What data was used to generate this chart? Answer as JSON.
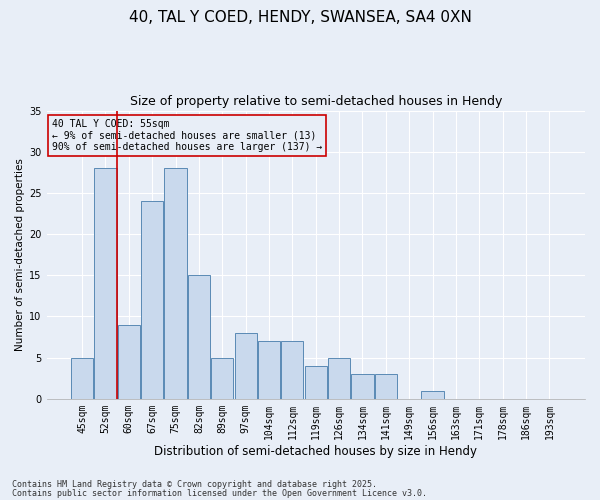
{
  "title1": "40, TAL Y COED, HENDY, SWANSEA, SA4 0XN",
  "title2": "Size of property relative to semi-detached houses in Hendy",
  "xlabel": "Distribution of semi-detached houses by size in Hendy",
  "ylabel": "Number of semi-detached properties",
  "categories": [
    "45sqm",
    "52sqm",
    "60sqm",
    "67sqm",
    "75sqm",
    "82sqm",
    "89sqm",
    "97sqm",
    "104sqm",
    "112sqm",
    "119sqm",
    "126sqm",
    "134sqm",
    "141sqm",
    "149sqm",
    "156sqm",
    "163sqm",
    "171sqm",
    "178sqm",
    "186sqm",
    "193sqm"
  ],
  "values": [
    5,
    28,
    9,
    24,
    28,
    15,
    5,
    8,
    7,
    7,
    4,
    5,
    3,
    3,
    0,
    1,
    0,
    0,
    0,
    0,
    0
  ],
  "bar_color": "#c9d9ed",
  "bar_edge_color": "#5a8ab5",
  "background_color": "#e8eef7",
  "grid_color": "#ffffff",
  "ylim": [
    0,
    35
  ],
  "yticks": [
    0,
    5,
    10,
    15,
    20,
    25,
    30,
    35
  ],
  "property_line_x": 1.5,
  "property_line_color": "#cc0000",
  "annotation_title": "40 TAL Y COED: 55sqm",
  "annotation_line1": "← 9% of semi-detached houses are smaller (13)",
  "annotation_line2": "90% of semi-detached houses are larger (137) →",
  "footnote1": "Contains HM Land Registry data © Crown copyright and database right 2025.",
  "footnote2": "Contains public sector information licensed under the Open Government Licence v3.0.",
  "title1_fontsize": 11,
  "title2_fontsize": 9,
  "xlabel_fontsize": 8.5,
  "ylabel_fontsize": 7.5,
  "tick_fontsize": 7,
  "annot_fontsize": 7,
  "footnote_fontsize": 6
}
